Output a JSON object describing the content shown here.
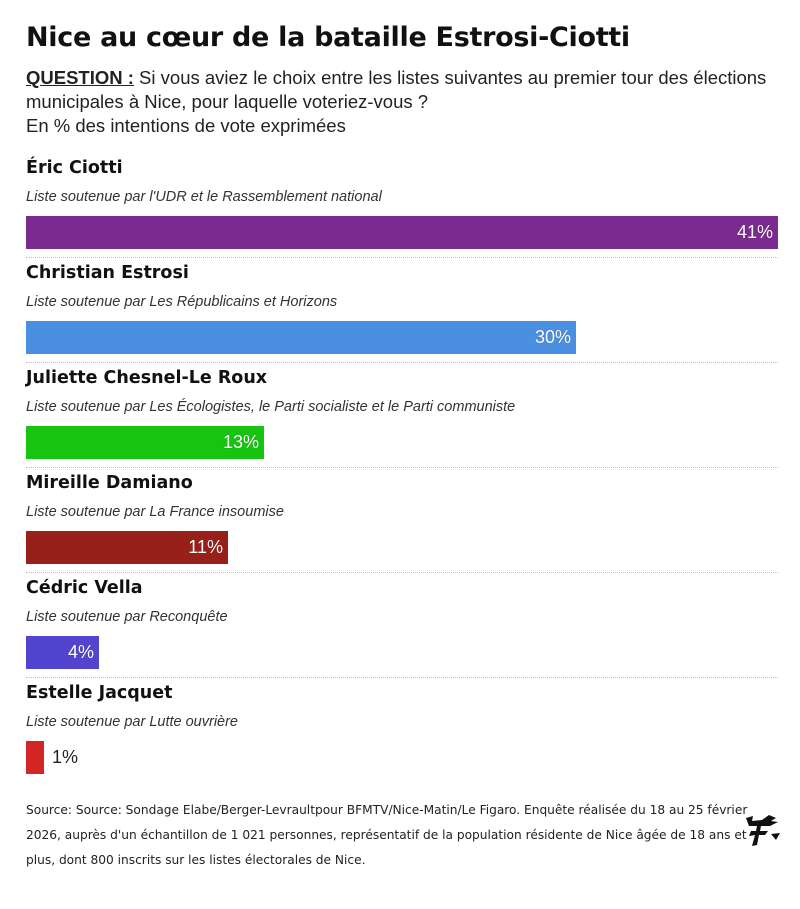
{
  "title": "Nice au cœur de la bataille Estrosi-Ciotti",
  "subtitle": {
    "question_label": "QUESTION :",
    "question_text": " Si vous aviez le choix entre les listes suivantes au premier tour des élections municipales à Nice, pour laquelle voteriez-vous ?",
    "unit_note": "En % des intentions de vote exprimées"
  },
  "chart_data": {
    "type": "bar",
    "orientation": "horizontal",
    "title": "Nice au cœur de la bataille Estrosi-Ciotti",
    "xlim": [
      0,
      41
    ],
    "grid": false,
    "legend": "none",
    "categories": [
      "Éric Ciotti",
      "Christian Estrosi",
      "Juliette Chesnel-Le Roux",
      "Mireille Damiano",
      "Cédric Vella",
      "Estelle Jacquet"
    ],
    "values": [
      41,
      30,
      13,
      11,
      4,
      1
    ],
    "rows": [
      {
        "name": "Éric Ciotti",
        "desc": "Liste soutenue par l'UDR et le Rassemblement national",
        "value": 41,
        "label": "41%",
        "color": "#7b2a8f"
      },
      {
        "name": "Christian Estrosi",
        "desc": "Liste soutenue par Les Républicains et Horizons",
        "value": 30,
        "label": "30%",
        "color": "#4a8fe0"
      },
      {
        "name": "Juliette Chesnel-Le Roux",
        "desc": "Liste soutenue par Les Écologistes, le Parti socialiste et le Parti communiste",
        "value": 13,
        "label": "13%",
        "color": "#17c40f"
      },
      {
        "name": "Mireille Damiano",
        "desc": "Liste soutenue par La France insoumise",
        "value": 11,
        "label": "11%",
        "color": "#98201b"
      },
      {
        "name": "Cédric Vella",
        "desc": "Liste soutenue par Reconquête",
        "value": 4,
        "label": "4%",
        "color": "#5145d0"
      },
      {
        "name": "Estelle Jacquet",
        "desc": "Liste soutenue par Lutte ouvrière",
        "value": 1,
        "label": "1%",
        "color": "#d42525"
      }
    ]
  },
  "source": "Source: Source: Sondage Elabe/Berger-Levraultpour BFMTV/Nice-Matin/Le Figaro. Enquête réalisée du 18 au 25 février 2026, auprès d'un échantillon de 1 021 personnes, représentatif de la population résidente de Nice âgée de 18 ans et plus, dont 800 inscrits sur les listes électorales de Nice.",
  "logo_icon": "le-figaro-f-logo-icon"
}
